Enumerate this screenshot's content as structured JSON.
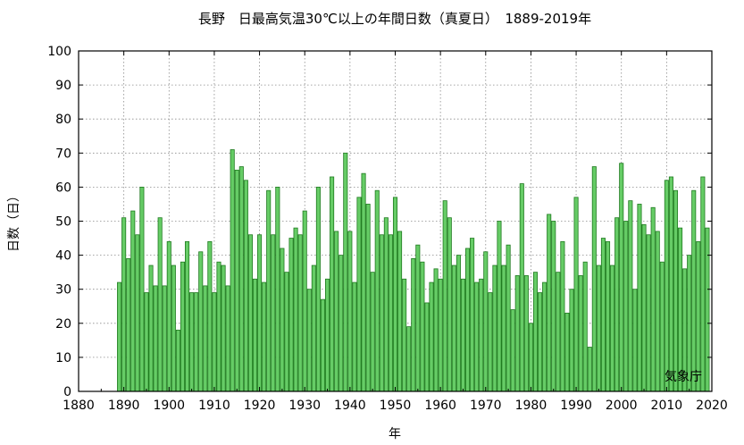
{
  "chart_data": {
    "type": "bar",
    "title": "長野　日最高気温30℃以上の年間日数（真夏日）　1889-2019年",
    "xlabel": "年",
    "ylabel": "日数（日）",
    "credit": "気象庁",
    "xlim": [
      1880,
      2020
    ],
    "ylim": [
      0,
      100
    ],
    "xticks": [
      1880,
      1890,
      1900,
      1910,
      1920,
      1930,
      1940,
      1950,
      1960,
      1970,
      1980,
      1990,
      2000,
      2010,
      2020
    ],
    "yticks": [
      0,
      10,
      20,
      30,
      40,
      50,
      60,
      70,
      80,
      90,
      100
    ],
    "grid": true,
    "bar_color": "#66cc66",
    "bar_edge_color": "#1f7a1f",
    "x": [
      1889,
      1890,
      1891,
      1892,
      1893,
      1894,
      1895,
      1896,
      1897,
      1898,
      1899,
      1900,
      1901,
      1902,
      1903,
      1904,
      1905,
      1906,
      1907,
      1908,
      1909,
      1910,
      1911,
      1912,
      1913,
      1914,
      1915,
      1916,
      1917,
      1918,
      1919,
      1920,
      1921,
      1922,
      1923,
      1924,
      1925,
      1926,
      1927,
      1928,
      1929,
      1930,
      1931,
      1932,
      1933,
      1934,
      1935,
      1936,
      1937,
      1938,
      1939,
      1940,
      1941,
      1942,
      1943,
      1944,
      1945,
      1946,
      1947,
      1948,
      1949,
      1950,
      1951,
      1952,
      1953,
      1954,
      1955,
      1956,
      1957,
      1958,
      1959,
      1960,
      1961,
      1962,
      1963,
      1964,
      1965,
      1966,
      1967,
      1968,
      1969,
      1970,
      1971,
      1972,
      1973,
      1974,
      1975,
      1976,
      1977,
      1978,
      1979,
      1980,
      1981,
      1982,
      1983,
      1984,
      1985,
      1986,
      1987,
      1988,
      1989,
      1990,
      1991,
      1992,
      1993,
      1994,
      1995,
      1996,
      1997,
      1998,
      1999,
      2000,
      2001,
      2002,
      2003,
      2004,
      2005,
      2006,
      2007,
      2008,
      2009,
      2010,
      2011,
      2012,
      2013,
      2014,
      2015,
      2016,
      2017,
      2018,
      2019
    ],
    "values": [
      32,
      51,
      39,
      53,
      46,
      60,
      29,
      37,
      31,
      51,
      31,
      44,
      37,
      18,
      38,
      44,
      29,
      29,
      41,
      31,
      44,
      29,
      38,
      37,
      31,
      71,
      65,
      66,
      62,
      46,
      33,
      46,
      32,
      59,
      46,
      60,
      42,
      35,
      45,
      48,
      46,
      53,
      30,
      37,
      60,
      27,
      33,
      63,
      47,
      40,
      70,
      47,
      32,
      57,
      64,
      55,
      35,
      59,
      46,
      51,
      46,
      57,
      47,
      33,
      19,
      39,
      43,
      38,
      26,
      32,
      36,
      33,
      56,
      51,
      37,
      40,
      33,
      42,
      45,
      32,
      33,
      41,
      29,
      37,
      50,
      37,
      43,
      24,
      34,
      61,
      34,
      20,
      35,
      29,
      32,
      52,
      50,
      35,
      44,
      23,
      30,
      57,
      34,
      38,
      13,
      66,
      37,
      45,
      44,
      37,
      51,
      67,
      50,
      56,
      30,
      55,
      49,
      46,
      54,
      47,
      38,
      62,
      63,
      59,
      48,
      36,
      40,
      59,
      44,
      63,
      48
    ]
  }
}
